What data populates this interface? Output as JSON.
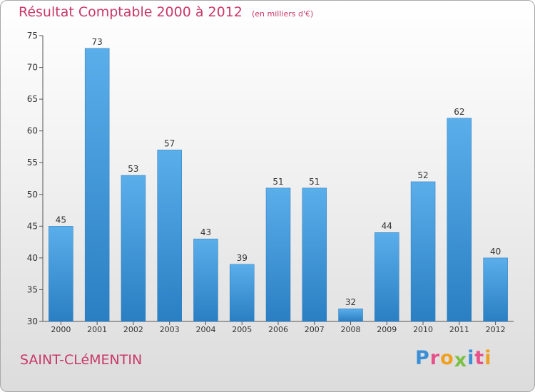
{
  "title": "Résultat Comptable 2000 à 2012",
  "subtitle": "(en milliers d'€)",
  "place": "SAINT-CLéMENTIN",
  "logo": {
    "letters": [
      "P",
      "r",
      "o",
      "x",
      "i",
      "t",
      "i"
    ],
    "colors": [
      "#3a8fd6",
      "#e8508a",
      "#f0a020",
      "#7ac143",
      "#3a8fd6",
      "#e8508a",
      "#f0a020"
    ]
  },
  "colors": {
    "bar_top": "#5aaeea",
    "bar_bottom": "#2a7fc3",
    "title": "#c8386a"
  },
  "chart_data": {
    "type": "bar",
    "title": "Résultat Comptable 2000 à 2012",
    "xlabel": "",
    "ylabel": "",
    "categories": [
      "2000",
      "2001",
      "2002",
      "2003",
      "2004",
      "2005",
      "2006",
      "2007",
      "2008",
      "2009",
      "2010",
      "2011",
      "2012"
    ],
    "values": [
      45,
      73,
      53,
      57,
      43,
      39,
      51,
      51,
      32,
      44,
      52,
      62,
      40
    ],
    "ylim": [
      30,
      75
    ],
    "yticks": [
      30,
      35,
      40,
      45,
      50,
      55,
      60,
      65,
      70,
      75
    ],
    "grid": false,
    "legend": "none"
  }
}
